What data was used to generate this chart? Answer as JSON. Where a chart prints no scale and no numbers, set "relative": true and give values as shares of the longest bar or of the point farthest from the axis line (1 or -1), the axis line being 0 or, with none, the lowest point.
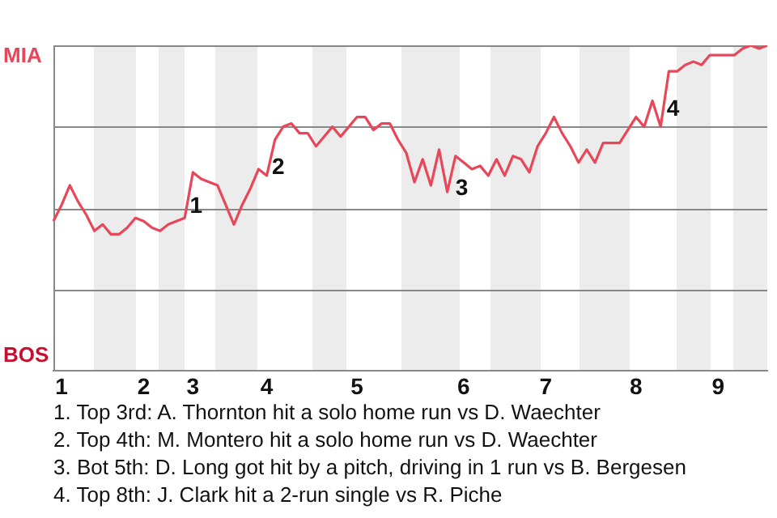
{
  "chart_data": {
    "type": "line",
    "relative": true,
    "categories": [
      null,
      "1",
      null,
      null,
      null,
      null,
      null,
      null,
      null,
      null,
      null,
      "2",
      null,
      null,
      null,
      null,
      null,
      "3",
      null,
      null,
      null,
      null,
      null,
      null,
      null,
      null,
      "4",
      null,
      null,
      null,
      null,
      null,
      null,
      null,
      null,
      null,
      null,
      "5",
      null,
      null,
      null,
      null,
      null,
      null,
      null,
      null,
      null,
      null,
      null,
      null,
      "6",
      null,
      null,
      null,
      null,
      null,
      null,
      null,
      null,
      null,
      "7",
      null,
      null,
      null,
      null,
      null,
      null,
      null,
      null,
      null,
      null,
      "8",
      null,
      null,
      null,
      null,
      null,
      null,
      null,
      null,
      null,
      "9",
      null,
      null,
      null,
      null,
      null,
      null
    ],
    "series": [
      {
        "color": "#e8475a",
        "values": [
          0.46,
          0.51,
          0.57,
          0.52,
          0.48,
          0.43,
          0.45,
          0.42,
          0.42,
          0.44,
          0.47,
          0.46,
          0.44,
          0.43,
          0.45,
          0.46,
          0.47,
          0.61,
          0.59,
          0.58,
          0.57,
          0.51,
          0.45,
          0.51,
          0.56,
          0.62,
          0.6,
          0.71,
          0.75,
          0.76,
          0.73,
          0.73,
          0.69,
          0.72,
          0.75,
          0.72,
          0.75,
          0.78,
          0.78,
          0.74,
          0.76,
          0.76,
          0.71,
          0.67,
          0.58,
          0.65,
          0.57,
          0.68,
          0.55,
          0.66,
          0.64,
          0.62,
          0.63,
          0.6,
          0.65,
          0.6,
          0.66,
          0.65,
          0.61,
          0.69,
          0.73,
          0.78,
          0.73,
          0.69,
          0.64,
          0.68,
          0.64,
          0.7,
          0.7,
          0.7,
          0.74,
          0.78,
          0.75,
          0.83,
          0.75,
          0.92,
          0.92,
          0.94,
          0.95,
          0.94,
          0.97,
          0.97,
          0.97,
          0.97,
          0.99,
          1,
          0.99,
          1
        ]
      }
    ],
    "grid": "y",
    "legend": false,
    "marker": "none",
    "line_style": "solid",
    "annotations": [
      "MIA",
      "BOS",
      "1",
      "2",
      "3",
      "4",
      "1. Top 3rd: A. Thornton hit a solo home run vs D. Waechter",
      "2. Top 4th: M. Montero hit a solo home run vs D. Waechter",
      "3. Bot 5th: D. Long got hit by a pitch, driving in 1 run vs B. Bergesen",
      "4. Top 8th: J. Clark hit a 2-run single vs R. Piche"
    ]
  }
}
